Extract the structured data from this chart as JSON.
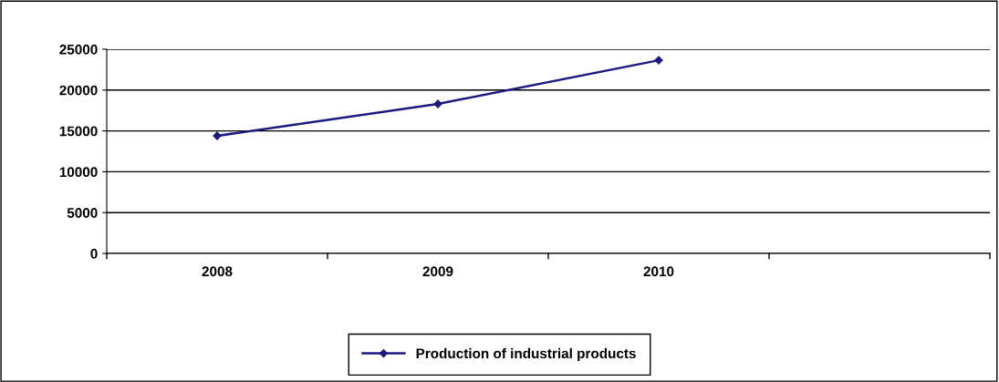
{
  "chart_data": {
    "type": "line",
    "categories": [
      "2008",
      "2009",
      "2010",
      null
    ],
    "series": [
      {
        "name": "Production of industrial products",
        "color": "#1a1a80",
        "values": [
          14400,
          18300,
          23650,
          null
        ]
      }
    ],
    "ylim": [
      0,
      25000
    ],
    "yticks": [
      0,
      5000,
      10000,
      15000,
      20000,
      25000
    ],
    "grid": "y",
    "legend": "bottom",
    "marker": "diamond",
    "line_style": "solid"
  }
}
